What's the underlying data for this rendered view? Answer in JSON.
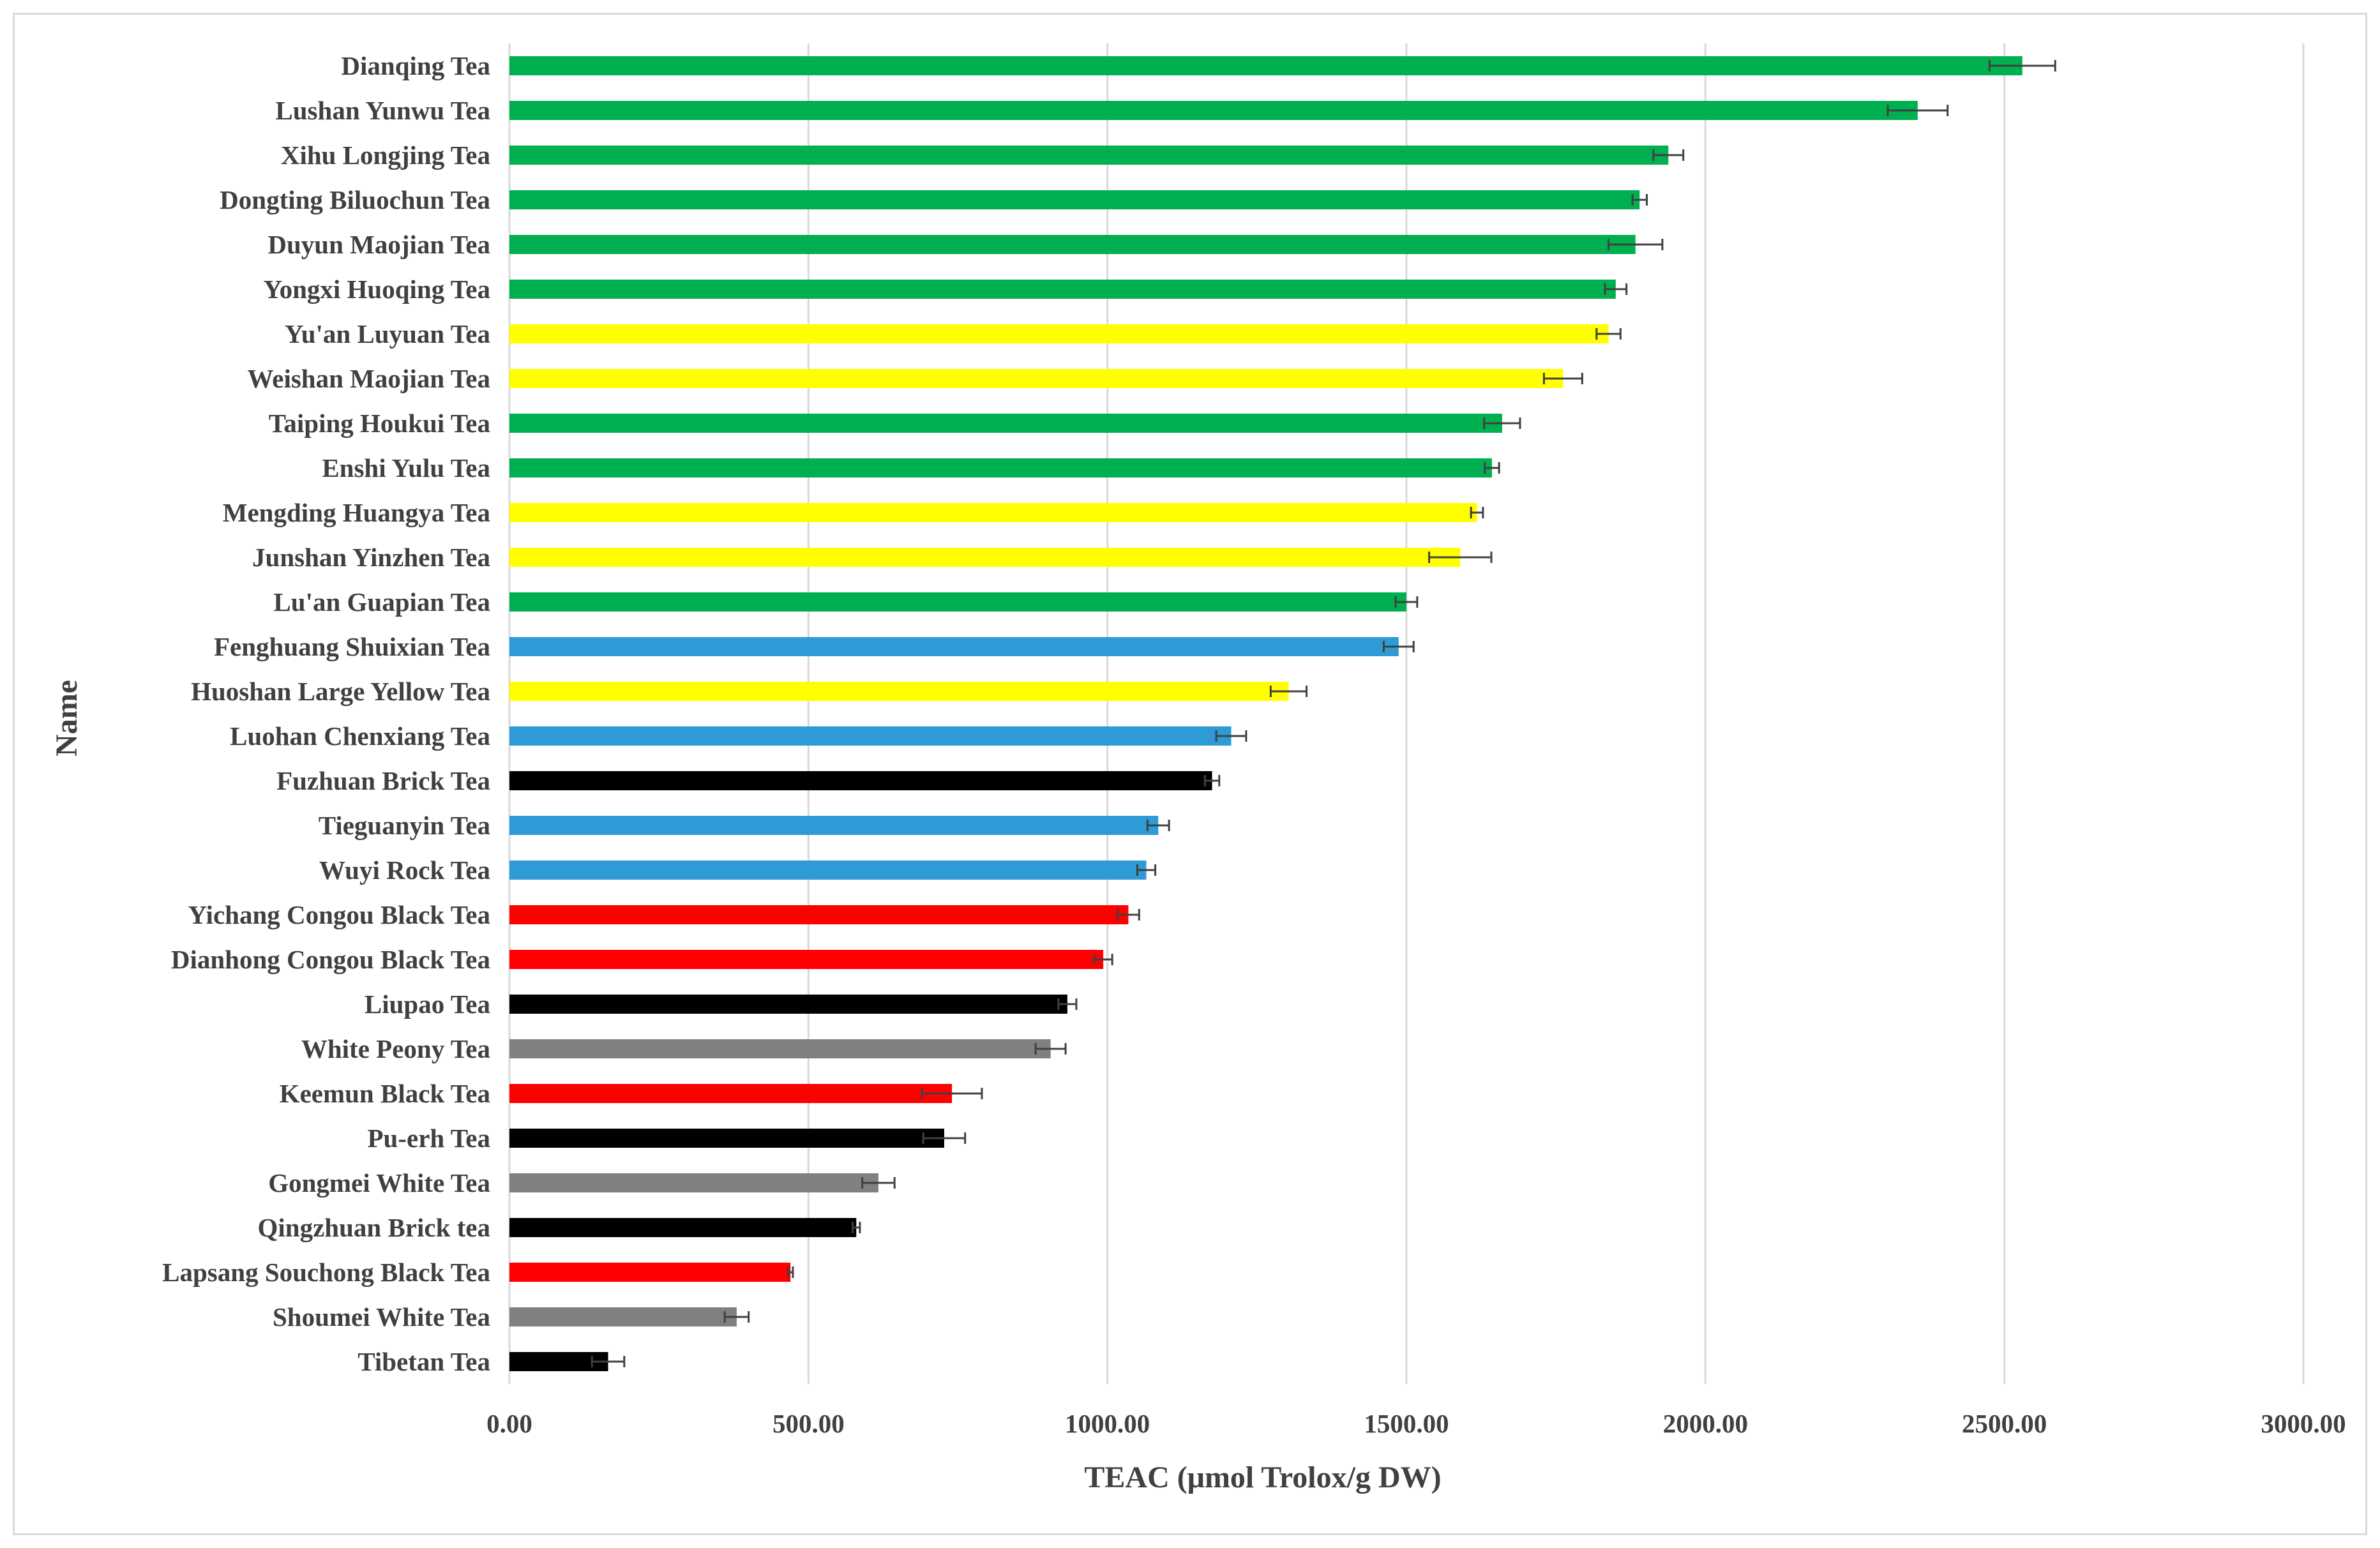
{
  "chart_data": {
    "type": "bar",
    "orientation": "horizontal",
    "title": "",
    "xlabel": "TEAC (μmol Trolox/g DW)",
    "ylabel": "Name",
    "xlim": [
      0,
      3000
    ],
    "xticks": [
      "0.00",
      "500.00",
      "1000.00",
      "1500.00",
      "2000.00",
      "2500.00",
      "3000.00"
    ],
    "grid": "vertical",
    "legend": "none",
    "colors": {
      "green": "#00b050",
      "yellow": "#ffff00",
      "blue": "#2e9ad6",
      "black": "#000000",
      "red": "#ff0000",
      "gray": "#808080",
      "grid": "#d9d9d9",
      "errorbar": "#404040"
    },
    "bars": [
      {
        "name": "Dianqing Tea",
        "value": 2530,
        "error": 55,
        "color": "green"
      },
      {
        "name": "Lushan Yunwu Tea",
        "value": 2355,
        "error": 50,
        "color": "green"
      },
      {
        "name": "Xihu Longjing Tea",
        "value": 1938,
        "error": 25,
        "color": "green"
      },
      {
        "name": "Dongting Biluochun Tea",
        "value": 1890,
        "error": 12,
        "color": "green"
      },
      {
        "name": "Duyun Maojian Tea",
        "value": 1883,
        "error": 45,
        "color": "green"
      },
      {
        "name": "Yongxi Huoqing Tea",
        "value": 1850,
        "error": 18,
        "color": "green"
      },
      {
        "name": "Yu'an Luyuan Tea",
        "value": 1838,
        "error": 20,
        "color": "yellow"
      },
      {
        "name": "Weishan Maojian Tea",
        "value": 1762,
        "error": 32,
        "color": "yellow"
      },
      {
        "name": "Taiping Houkui Tea",
        "value": 1660,
        "error": 30,
        "color": "green"
      },
      {
        "name": "Enshi Yulu Tea",
        "value": 1643,
        "error": 12,
        "color": "green"
      },
      {
        "name": "Mengding Huangya Tea",
        "value": 1618,
        "error": 10,
        "color": "yellow"
      },
      {
        "name": "Junshan Yinzhen Tea",
        "value": 1590,
        "error": 52,
        "color": "yellow"
      },
      {
        "name": "Lu'an Guapian Tea",
        "value": 1500,
        "error": 18,
        "color": "green"
      },
      {
        "name": "Fenghuang Shuixian Tea",
        "value": 1487,
        "error": 25,
        "color": "blue"
      },
      {
        "name": "Huoshan Large Yellow Tea",
        "value": 1303,
        "error": 30,
        "color": "yellow"
      },
      {
        "name": "Luohan Chenxiang Tea",
        "value": 1207,
        "error": 25,
        "color": "blue"
      },
      {
        "name": "Fuzhuan Brick Tea",
        "value": 1175,
        "error": 12,
        "color": "black"
      },
      {
        "name": "Tieguanyin Tea",
        "value": 1085,
        "error": 18,
        "color": "blue"
      },
      {
        "name": "Wuyi Rock Tea",
        "value": 1065,
        "error": 15,
        "color": "blue"
      },
      {
        "name": "Yichang Congou Black Tea",
        "value": 1035,
        "error": 18,
        "color": "red"
      },
      {
        "name": "Dianhong Congou Black Tea",
        "value": 993,
        "error": 15,
        "color": "red"
      },
      {
        "name": "Liupao Tea",
        "value": 933,
        "error": 15,
        "color": "black"
      },
      {
        "name": "White Peony Tea",
        "value": 905,
        "error": 25,
        "color": "gray"
      },
      {
        "name": "Keemun Black Tea",
        "value": 740,
        "error": 50,
        "color": "red"
      },
      {
        "name": "Pu-erh Tea",
        "value": 727,
        "error": 35,
        "color": "black"
      },
      {
        "name": "Gongmei White Tea",
        "value": 617,
        "error": 27,
        "color": "gray"
      },
      {
        "name": "Qingzhuan Brick tea",
        "value": 580,
        "error": 6,
        "color": "black"
      },
      {
        "name": "Lapsang Souchong Black Tea",
        "value": 470,
        "error": 4,
        "color": "red"
      },
      {
        "name": "Shoumei White Tea",
        "value": 380,
        "error": 20,
        "color": "gray"
      },
      {
        "name": "Tibetan Tea",
        "value": 165,
        "error": 27,
        "color": "black"
      }
    ]
  }
}
